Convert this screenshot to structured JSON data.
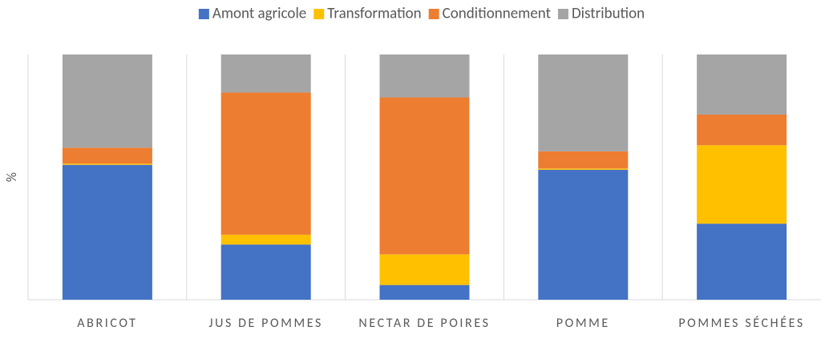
{
  "chart_data": {
    "type": "stacked_bar_100",
    "y_label": "%",
    "categories": [
      "ABRICOT",
      "JUS DE POMMES",
      "NECTAR DE POIRES",
      "POMME",
      "POMMES SÉCHÉES"
    ],
    "series": [
      {
        "name": "Amont agricole",
        "color": "#4472c4",
        "values": [
          55,
          22.5,
          6,
          53,
          31
        ]
      },
      {
        "name": "Transformation",
        "color": "#ffc000",
        "values": [
          0.5,
          4,
          12.5,
          0.5,
          32
        ]
      },
      {
        "name": "Conditionnement",
        "color": "#ed7d31",
        "values": [
          6.5,
          58,
          64,
          7,
          12.5
        ]
      },
      {
        "name": "Distribution",
        "color": "#a5a5a5",
        "values": [
          38,
          15.5,
          17.5,
          39.5,
          24.5
        ]
      }
    ],
    "ylim": [
      0,
      100
    ],
    "legend": "top"
  }
}
